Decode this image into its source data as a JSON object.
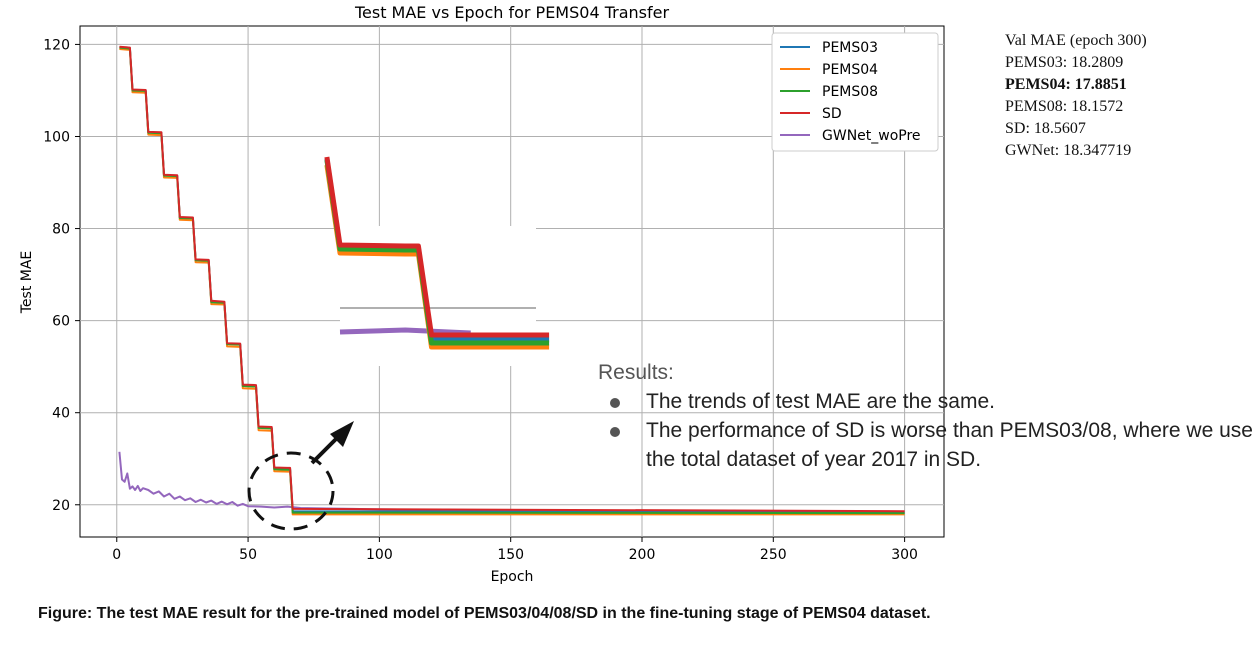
{
  "side_note": {
    "heading": "Val MAE  (epoch 300)",
    "lines": [
      {
        "text": "PEMS03: 18.2809",
        "bold": false
      },
      {
        "text": "PEMS04: 17.8851",
        "bold": true
      },
      {
        "text": "PEMS08: 18.1572",
        "bold": false
      },
      {
        "text": "SD: 18.5607",
        "bold": false
      },
      {
        "text": "GWNet: 18.347719",
        "bold": false
      }
    ]
  },
  "results": {
    "heading": "Results:",
    "bullets": [
      "The trends of test MAE are the same.",
      "The performance of SD is worse than PEMS03/08, where we use the total dataset of year 2017 in SD."
    ]
  },
  "caption": "Figure: The test MAE result for the pre-trained model of PEMS03/04/08/SD in the fine-tuning stage of PEMS04 dataset.",
  "chart_data": {
    "type": "line",
    "title": "Test MAE vs Epoch for PEMS04 Transfer",
    "xlabel": "Epoch",
    "ylabel": "Test MAE",
    "xlim": [
      -14,
      315
    ],
    "ylim": [
      13,
      124
    ],
    "xticks": [
      0,
      50,
      100,
      150,
      200,
      250,
      300
    ],
    "yticks": [
      20,
      40,
      60,
      80,
      100,
      120
    ],
    "grid": true,
    "legend_position": "top-right",
    "step_x": [
      1,
      5,
      6,
      11,
      12,
      17,
      18,
      23,
      24,
      29,
      30,
      35,
      36,
      41,
      42,
      47,
      48,
      53,
      54,
      59,
      60,
      65,
      66,
      67,
      300
    ],
    "series": [
      {
        "name": "PEMS03",
        "color": "#1f77b4",
        "y": [
          119.4,
          119.2,
          110.1,
          110.0,
          100.9,
          100.8,
          91.6,
          91.5,
          82.4,
          82.3,
          73.2,
          73.1,
          64.2,
          64.0,
          55.0,
          54.9,
          45.9,
          45.8,
          36.8,
          36.7,
          27.9,
          27.8,
          27.8,
          18.6,
          18.3
        ]
      },
      {
        "name": "PEMS04",
        "color": "#ff7f0e",
        "y": [
          119.0,
          118.8,
          109.6,
          109.5,
          100.4,
          100.3,
          91.1,
          91.0,
          81.9,
          81.8,
          72.7,
          72.6,
          63.6,
          63.5,
          54.4,
          54.3,
          45.3,
          45.2,
          36.2,
          36.1,
          27.3,
          27.2,
          27.2,
          17.9,
          17.9
        ]
      },
      {
        "name": "PEMS08",
        "color": "#2ca02c",
        "y": [
          119.3,
          119.1,
          110.0,
          109.9,
          100.8,
          100.7,
          91.5,
          91.4,
          82.3,
          82.2,
          73.1,
          73.0,
          64.0,
          63.9,
          54.9,
          54.8,
          45.8,
          45.7,
          36.7,
          36.6,
          27.7,
          27.6,
          27.6,
          18.3,
          18.2
        ]
      },
      {
        "name": "SD",
        "color": "#d62728",
        "y": [
          119.5,
          119.3,
          110.2,
          110.1,
          101.0,
          100.9,
          91.7,
          91.6,
          82.5,
          82.4,
          73.3,
          73.2,
          64.3,
          64.1,
          55.1,
          55.0,
          46.1,
          46.0,
          37.0,
          36.9,
          28.1,
          28.0,
          28.0,
          19.1,
          18.6
        ]
      },
      {
        "name": "GWNet_woPre",
        "color": "#9467bd",
        "x": [
          1,
          2,
          3,
          4,
          5,
          6,
          7,
          8,
          9,
          10,
          12,
          14,
          16,
          18,
          20,
          22,
          24,
          26,
          28,
          30,
          32,
          34,
          36,
          38,
          40,
          42,
          44,
          46,
          48,
          50,
          55,
          60,
          65,
          70,
          80,
          90,
          100,
          120,
          150,
          200,
          250,
          300
        ],
        "y": [
          31.5,
          25.5,
          25.0,
          26.8,
          23.5,
          24.0,
          23.2,
          24.1,
          23.0,
          23.6,
          23.2,
          22.4,
          22.9,
          21.8,
          22.4,
          21.3,
          21.8,
          21.0,
          21.4,
          20.6,
          21.1,
          20.5,
          20.9,
          20.2,
          20.7,
          20.1,
          20.6,
          19.8,
          20.2,
          19.7,
          19.6,
          19.4,
          19.6,
          19.3,
          19.2,
          19.1,
          19.0,
          18.9,
          18.8,
          18.6,
          18.5,
          18.4
        ]
      }
    ]
  }
}
